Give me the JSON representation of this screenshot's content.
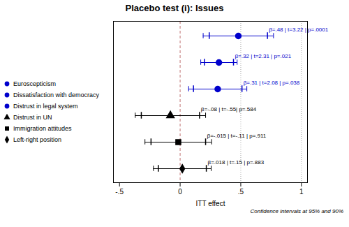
{
  "chart_data": {
    "type": "forest",
    "title": "Placebo test (i): Issues",
    "xlabel": "ITT effect",
    "footnote": "Confidence intervals at 95% and 90%",
    "xlim": [
      -0.55,
      1.05
    ],
    "xticks": [
      {
        "value": -0.5,
        "label": "-.5"
      },
      0,
      {
        "value": 0.5,
        "label": ".5"
      },
      1
    ],
    "tick_labels": "x",
    "legend": "left",
    "reference_lines": [
      {
        "x": 0,
        "line_style": "dashed",
        "color": "#c07070"
      },
      {
        "x": 0.5,
        "line_style": "dotted",
        "color": "gray"
      },
      {
        "x": 1,
        "line_style": "dotted",
        "color": "gray"
      }
    ],
    "series": [
      {
        "name": "Euroscepticism",
        "color": "#0000cc",
        "marker": "circle",
        "values": [
          0.48
        ],
        "ci95_low": [
          0.19
        ],
        "ci95_high": [
          0.77
        ],
        "ci90_low": [
          0.24
        ],
        "ci90_high": [
          0.72
        ],
        "annotations": [
          "β=.48 | t=3.22 | p=.0001"
        ]
      },
      {
        "name": "Dissatisfaction with democracy",
        "color": "#0000cc",
        "marker": "circle",
        "values": [
          0.32
        ],
        "ci95_low": [
          0.17
        ],
        "ci95_high": [
          0.47
        ],
        "ci90_low": [
          0.2
        ],
        "ci90_high": [
          0.44
        ],
        "annotations": [
          "β=.32 | t=2.31 | p=.021"
        ]
      },
      {
        "name": "Distrust in legal system",
        "color": "#0000cc",
        "marker": "circle",
        "values": [
          0.31
        ],
        "ci95_low": [
          0.07
        ],
        "ci95_high": [
          0.55
        ],
        "ci90_low": [
          0.11
        ],
        "ci90_high": [
          0.51
        ],
        "annotations": [
          "β=.31 | t=2.08 | p=.038"
        ]
      },
      {
        "name": "Distrust in UN",
        "color": "black",
        "marker": "triangle",
        "values": [
          -0.08
        ],
        "ci95_low": [
          -0.37
        ],
        "ci95_high": [
          0.21
        ],
        "ci90_low": [
          -0.32
        ],
        "ci90_high": [
          0.16
        ],
        "annotations": [
          "β=-.08 | t=-.55| p=.584"
        ]
      },
      {
        "name": "Immigration attitudes",
        "color": "black",
        "marker": "square",
        "values": [
          -0.015
        ],
        "ci95_low": [
          -0.29
        ],
        "ci95_high": [
          0.26
        ],
        "ci90_low": [
          -0.24
        ],
        "ci90_high": [
          0.21
        ],
        "annotations": [
          "β=-.015 | t=-.11 | p=.911"
        ]
      },
      {
        "name": "Left-right position",
        "color": "black",
        "marker": "diamond",
        "values": [
          0.018
        ],
        "ci95_low": [
          -0.22
        ],
        "ci95_high": [
          0.256
        ],
        "ci90_low": [
          -0.18
        ],
        "ci90_high": [
          0.216
        ],
        "annotations": [
          "β=.018 | t=.15 | p=.883"
        ]
      }
    ]
  }
}
